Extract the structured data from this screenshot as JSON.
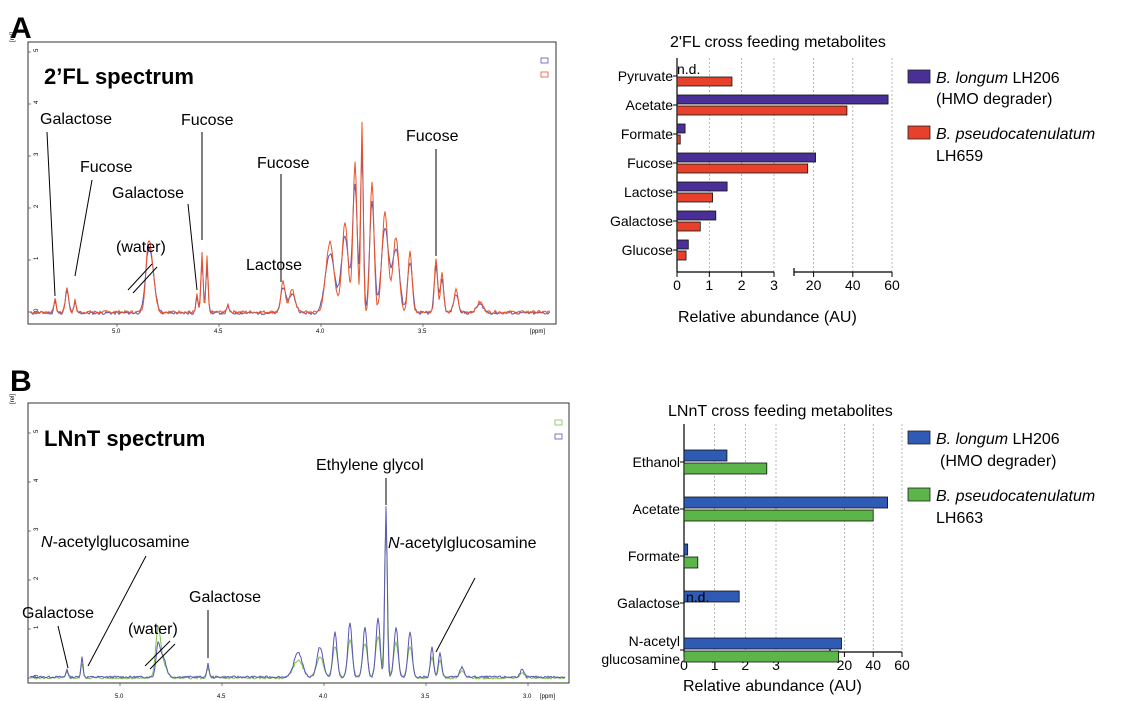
{
  "panels": {
    "a": {
      "letter": "A",
      "spectrum": {
        "title": "2’FL spectrum",
        "y_unit": "[rel]",
        "x_unit": "[ppm]",
        "y_ticks": [
          "0",
          "1",
          "2",
          "3",
          "4",
          "5"
        ],
        "x_ticks": [
          "5.0",
          "4.5",
          "4.0",
          "3.5"
        ],
        "annotations": [
          "Galactose",
          "Fucose",
          "Galactose",
          "(water)",
          "Fucose",
          "Lactose",
          "Fucose",
          "Fucose"
        ],
        "colors": {
          "series_1": "#e8542a",
          "series_2": "#5a55b5"
        }
      },
      "bar_title": "2'FL cross feeding metabolites",
      "bar_nd": "n.d.",
      "bar_xlabel": "Relative abundance (AU)",
      "bar_ticks_left": [
        "0",
        "1",
        "2",
        "3"
      ],
      "bar_ticks_right": [
        "20",
        "40",
        "60"
      ],
      "legend": [
        {
          "italic": "B. longum",
          "rest": " LH206",
          "line2": "(HMO degrader)",
          "color": "#4a2f96"
        },
        {
          "italic": "B. pseudocatenulatum",
          "rest": "",
          "line2": "LH659",
          "color": "#e8412b"
        }
      ]
    },
    "b": {
      "letter": "B",
      "spectrum": {
        "title": "LNnT spectrum",
        "y_unit": "[rel]",
        "x_unit": "[ppm]",
        "y_ticks": [
          "0",
          "1",
          "2",
          "3",
          "4",
          "5"
        ],
        "x_ticks": [
          "5.0",
          "4.5",
          "4.0",
          "3.5",
          "3.0"
        ],
        "annotations": [
          "Ethylene glycol",
          "-acetylglucosamine",
          "-acetylglucosamine",
          "Galactose",
          "(water)",
          "Galactose"
        ],
        "annotation_italic_prefix": "N",
        "colors": {
          "series_1": "#7dc24b",
          "series_2": "#5a55b5"
        }
      },
      "bar_title": "LNnT cross feeding metabolites",
      "bar_nd": "n.d.",
      "bar_xlabel": "Relative abundance (AU)",
      "bar_ticks_left": [
        "0",
        "1",
        "2",
        "3"
      ],
      "bar_ticks_right": [
        "20",
        "40",
        "60"
      ],
      "legend": [
        {
          "italic": "B. longum",
          "rest": " LH206",
          "line2": "(HMO degrader)",
          "color": "#2f5bb5"
        },
        {
          "italic": "B. pseudocatenulatum",
          "rest": "",
          "line2": "LH663",
          "color": "#5cb548"
        }
      ]
    }
  },
  "chart_data": [
    {
      "type": "bar",
      "orientation": "horizontal",
      "title": "2'FL cross feeding metabolites",
      "xlabel": "Relative abundance (AU)",
      "categories": [
        "Pyruvate",
        "Acetate",
        "Formate",
        "Fucose",
        "Lactose",
        "Galactose",
        "Glucose"
      ],
      "x_axis": "broken: 0-3 linear, 10-60 linear",
      "series": [
        {
          "name": "B. longum LH206 (HMO degrader)",
          "color": "#4a2f96",
          "values": [
            null,
            58,
            0.25,
            21,
            1.55,
            1.2,
            0.35
          ]
        },
        {
          "name": "B. pseudocatenulatum LH659",
          "color": "#e8412b",
          "values": [
            1.7,
            37,
            0.1,
            17,
            1.1,
            0.72,
            0.28
          ]
        }
      ],
      "notes": "Pyruvate for B. longum LH206: n.d."
    },
    {
      "type": "bar",
      "orientation": "horizontal",
      "title": "LNnT cross feeding metabolites",
      "xlabel": "Relative abundance (AU)",
      "categories": [
        "Ethanol",
        "Acetate",
        "Formate",
        "Galactose",
        "N-acetyl glucosamine"
      ],
      "x_axis": "broken: 0-3 linear, 10-60 linear",
      "series": [
        {
          "name": "B. longum LH206 (HMO degrader)",
          "color": "#2f5bb5",
          "values": [
            1.4,
            50,
            0.12,
            1.8,
            18
          ]
        },
        {
          "name": "B. pseudocatenulatum LH663",
          "color": "#5cb548",
          "values": [
            2.7,
            40,
            0.45,
            null,
            16
          ]
        }
      ],
      "notes": "Galactose for B. pseudocatenulatum LH663: n.d."
    }
  ]
}
